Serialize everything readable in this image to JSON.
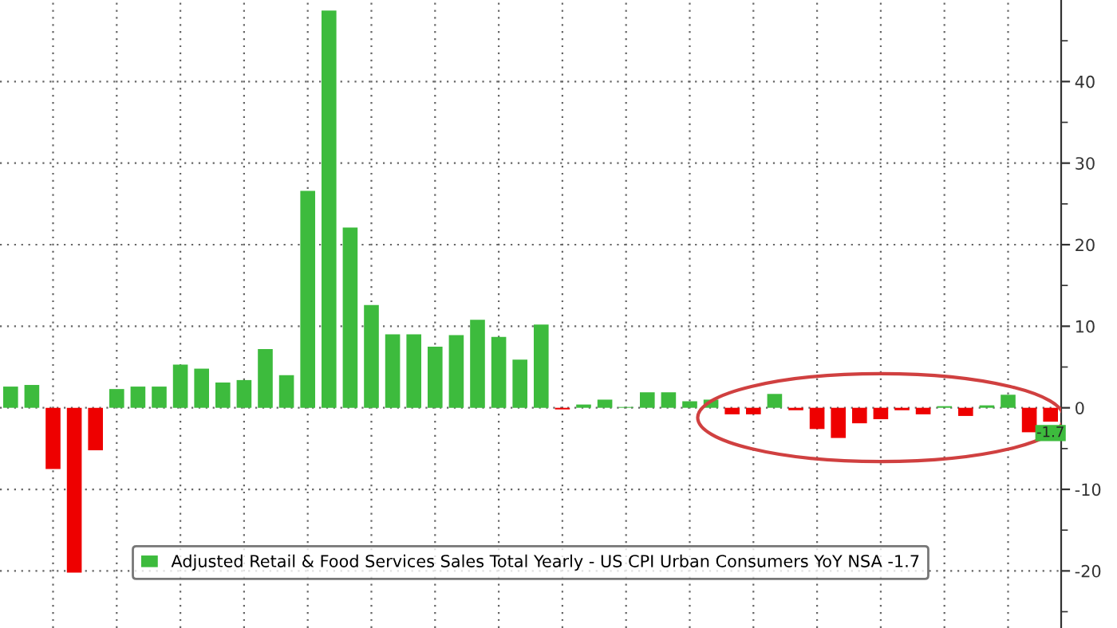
{
  "chart_data": {
    "type": "bar",
    "categories": [
      null,
      null,
      null,
      null,
      null,
      null,
      null,
      null,
      null,
      null,
      null,
      null,
      null,
      null,
      null,
      null,
      null,
      null,
      null,
      null,
      null,
      null,
      null,
      null,
      null,
      null,
      null,
      null,
      null,
      null,
      null,
      null,
      null,
      null,
      null,
      null,
      null,
      null,
      null,
      null,
      null,
      null,
      null,
      null,
      null,
      null,
      null,
      null,
      null,
      null
    ],
    "series": [
      {
        "name": "Adjusted Retail & Food Services Sales Total Yearly - US CPI Urban Consumers YoY NSA -1.7",
        "color": "#3dbb3d",
        "values": [
          2.6,
          2.8,
          -7.5,
          -20.2,
          -5.2,
          2.3,
          2.6,
          2.6,
          5.3,
          4.8,
          3.1,
          3.4,
          7.2,
          4.0,
          26.6,
          48.7,
          22.1,
          12.6,
          9.0,
          9.0,
          7.5,
          8.9,
          10.8,
          8.7,
          5.9,
          10.2,
          -0.2,
          0.4,
          1.0,
          0.1,
          1.9,
          1.9,
          0.8,
          1.0,
          -0.8,
          -0.8,
          1.7,
          -0.3,
          -2.6,
          -3.7,
          -1.9,
          -1.4,
          -0.3,
          -0.8,
          0.2,
          -1.0,
          0.3,
          1.6,
          -3.0,
          -1.7
        ],
        "colors": [
          "#3dbb3d",
          "#3dbb3d",
          "#ee0000",
          "#ee0000",
          "#ee0000",
          "#3dbb3d",
          "#3dbb3d",
          "#3dbb3d",
          "#3dbb3d",
          "#3dbb3d",
          "#3dbb3d",
          "#3dbb3d",
          "#3dbb3d",
          "#3dbb3d",
          "#3dbb3d",
          "#3dbb3d",
          "#3dbb3d",
          "#3dbb3d",
          "#3dbb3d",
          "#3dbb3d",
          "#3dbb3d",
          "#3dbb3d",
          "#3dbb3d",
          "#3dbb3d",
          "#3dbb3d",
          "#3dbb3d",
          "#ee0000",
          "#3dbb3d",
          "#3dbb3d",
          "#3dbb3d",
          "#3dbb3d",
          "#3dbb3d",
          "#3dbb3d",
          "#3dbb3d",
          "#ee0000",
          "#ee0000",
          "#3dbb3d",
          "#ee0000",
          "#ee0000",
          "#ee0000",
          "#ee0000",
          "#ee0000",
          "#ee0000",
          "#ee0000",
          "#3dbb3d",
          "#ee0000",
          "#3dbb3d",
          "#3dbb3d",
          "#ee0000",
          "#ee0000"
        ],
        "value_labels": [
          null,
          null,
          null,
          null,
          null,
          null,
          null,
          null,
          null,
          null,
          null,
          null,
          null,
          null,
          null,
          null,
          null,
          null,
          null,
          null,
          null,
          null,
          null,
          null,
          null,
          null,
          null,
          null,
          null,
          null,
          null,
          null,
          null,
          null,
          null,
          null,
          null,
          null,
          null,
          null,
          null,
          null,
          null,
          null,
          null,
          null,
          null,
          null,
          null,
          "-1.7"
        ]
      }
    ],
    "ylim": [
      -27,
      50
    ],
    "yticks": [
      -20,
      -10,
      0,
      10,
      20,
      30,
      40
    ],
    "grid": true,
    "legend": "bottom"
  }
}
